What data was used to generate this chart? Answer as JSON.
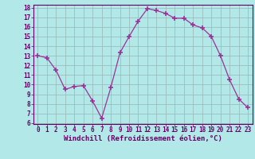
{
  "x": [
    0,
    1,
    2,
    3,
    4,
    5,
    6,
    7,
    8,
    9,
    10,
    11,
    12,
    13,
    14,
    15,
    16,
    17,
    18,
    19,
    20,
    21,
    22,
    23
  ],
  "y": [
    13,
    12.8,
    11.5,
    9.5,
    9.8,
    9.9,
    8.3,
    6.5,
    9.7,
    13.3,
    15.0,
    16.6,
    17.9,
    17.7,
    17.4,
    16.9,
    16.9,
    16.2,
    15.9,
    15.0,
    13.0,
    10.5,
    8.5,
    7.6
  ],
  "line_color": "#993399",
  "marker": "+",
  "marker_size": 4,
  "marker_lw": 1.2,
  "bg_color": "#b3e8e8",
  "grid_color": "#9dbdbd",
  "xlabel": "Windchill (Refroidissement éolien,°C)",
  "ylim": [
    6,
    18
  ],
  "xlim": [
    -0.5,
    23.5
  ],
  "yticks": [
    6,
    7,
    8,
    9,
    10,
    11,
    12,
    13,
    14,
    15,
    16,
    17,
    18
  ],
  "xticks": [
    0,
    1,
    2,
    3,
    4,
    5,
    6,
    7,
    8,
    9,
    10,
    11,
    12,
    13,
    14,
    15,
    16,
    17,
    18,
    19,
    20,
    21,
    22,
    23
  ],
  "tick_label_fontsize": 5.5,
  "xlabel_fontsize": 6.5,
  "line_width": 0.9
}
